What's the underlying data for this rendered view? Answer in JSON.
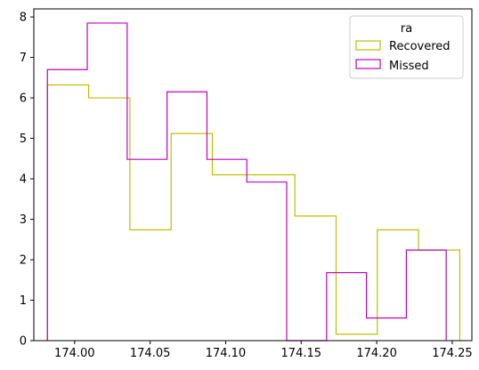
{
  "chart_data": {
    "type": "histogram-step",
    "xlim": [
      173.973,
      174.263
    ],
    "ylim": [
      0,
      8.2
    ],
    "xticks": [
      174.0,
      174.05,
      174.1,
      174.15,
      174.2,
      174.25
    ],
    "xtick_labels": [
      "174.00",
      "174.05",
      "174.10",
      "174.15",
      "174.20",
      "174.25"
    ],
    "yticks": [
      0,
      1,
      2,
      3,
      4,
      5,
      6,
      7,
      8
    ],
    "ytick_labels": [
      "0",
      "1",
      "2",
      "3",
      "4",
      "5",
      "6",
      "7",
      "8"
    ],
    "legend": {
      "title": "ra",
      "placement": "top-right"
    },
    "series": [
      {
        "name": "Recovered",
        "color": "#bfbf00",
        "bin_edges": [
          173.982,
          174.0093,
          174.0366,
          174.0639,
          174.0912,
          174.1185,
          174.1458,
          174.1731,
          174.2004,
          174.2277,
          174.255
        ],
        "values": [
          6.32,
          6.0,
          2.74,
          5.12,
          4.1,
          4.1,
          3.08,
          0.16,
          2.74,
          2.24
        ]
      },
      {
        "name": "Missed",
        "color": "#bf00bf",
        "bin_edges": [
          173.982,
          174.0084,
          174.0348,
          174.0612,
          174.0876,
          174.114,
          174.1404,
          174.1668,
          174.1932,
          174.2196,
          174.246
        ],
        "values": [
          6.7,
          7.85,
          4.48,
          6.15,
          4.48,
          3.92,
          0,
          1.68,
          0.56,
          2.24
        ]
      }
    ]
  }
}
